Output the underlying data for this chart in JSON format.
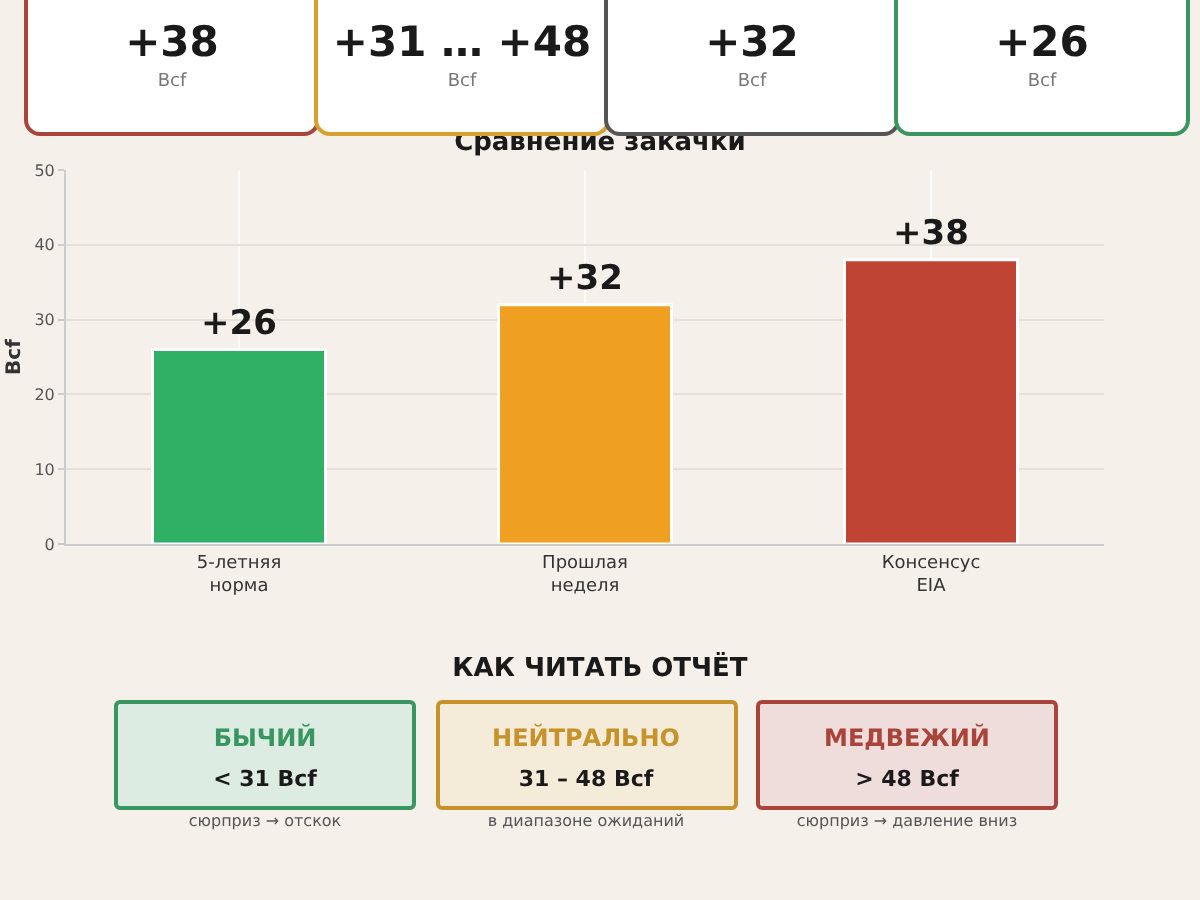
{
  "chart_data": [
    {
      "type": "other",
      "annotations": [
        "+38",
        "Bcf",
        "+31 … +48",
        "Bcf",
        "+32",
        "Bcf",
        "+26",
        "Bcf"
      ],
      "colors": [
        "#a8443a",
        "#d9a030",
        "#555555",
        "#3a9660"
      ]
    },
    {
      "type": "bar",
      "title": "Сравнение закачки",
      "ylabel": "Bcf",
      "categories": [
        "5-летняя\nнорма",
        "Прошлая\nнеделя",
        "Консенсус\nEIA"
      ],
      "values": [
        26,
        32,
        38
      ],
      "colors": [
        "#2fb064",
        "#f0a020",
        "#c04434"
      ],
      "value_labels": [
        "+26",
        "+32",
        "+38"
      ],
      "ylim": [
        0,
        50
      ],
      "yticks": [
        0,
        10,
        20,
        30,
        40,
        50
      ],
      "grid": true
    },
    {
      "type": "other",
      "title": "КАК ЧИТАТЬ ОТЧЁТ",
      "annotations": [
        "БЫЧИЙ",
        "< 31 Bcf",
        "сюрприз → отскок",
        "НЕЙТРАЛЬНО",
        "31 – 48 Bcf",
        "в диапазоне ожиданий",
        "МЕДВЕЖИЙ",
        "> 48 Bcf",
        "сюрприз → давление вниз"
      ],
      "colors": [
        "#3a9660",
        "#c8922a",
        "#a8443a"
      ]
    }
  ]
}
